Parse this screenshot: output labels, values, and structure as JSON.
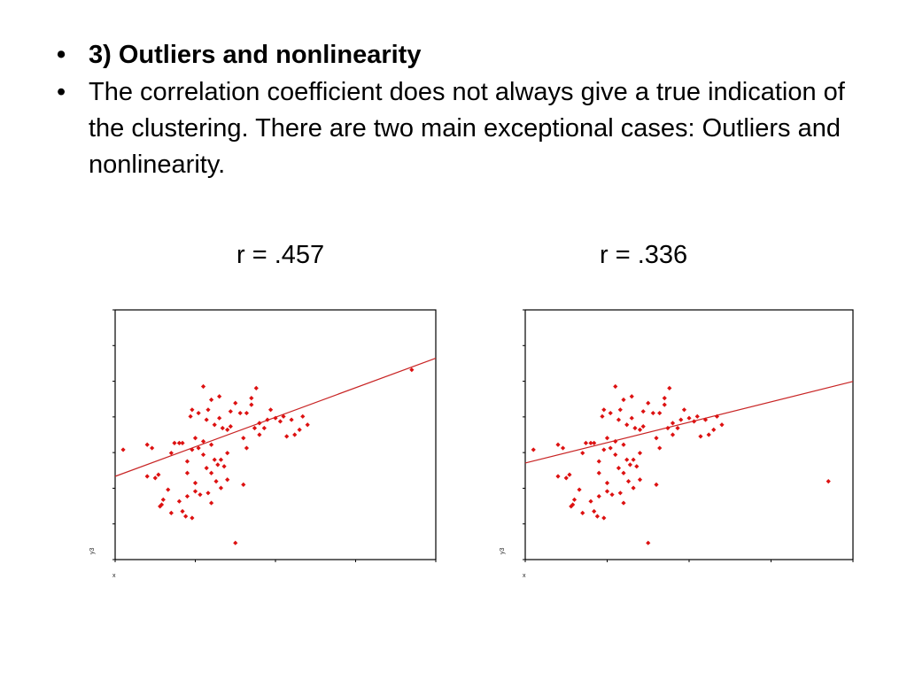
{
  "slide": {
    "bullets": [
      {
        "text": "3) Outliers and nonlinearity",
        "bold": true
      },
      {
        "text": "The correlation coefficient does not always give a true indication of the clustering.  There are two main exceptional cases: Outliers and nonlinearity.",
        "bold": false
      }
    ],
    "bullet_glyph": "•"
  },
  "colors": {
    "points": "#dd1111",
    "fit_line": "#c82424",
    "frame": "#000000"
  },
  "chart_data": [
    {
      "type": "scatter",
      "title": "r = .457",
      "xlabel": "x",
      "ylabel": "y3",
      "xlim": [
        0,
        200
      ],
      "ylim": [
        0,
        150
      ],
      "fit_line": [
        [
          0,
          50
        ],
        [
          200,
          121
        ]
      ],
      "points": [
        [
          5,
          66
        ],
        [
          20,
          69
        ],
        [
          23,
          67
        ],
        [
          25,
          49
        ],
        [
          27,
          51
        ],
        [
          29,
          33
        ],
        [
          35,
          64
        ],
        [
          37,
          70
        ],
        [
          40,
          70
        ],
        [
          42,
          70
        ],
        [
          45,
          59
        ],
        [
          47,
          86
        ],
        [
          48,
          66
        ],
        [
          50,
          73
        ],
        [
          52,
          67
        ],
        [
          55,
          71
        ],
        [
          57,
          84
        ],
        [
          60,
          69
        ],
        [
          62,
          81
        ],
        [
          65,
          85
        ],
        [
          67,
          79
        ],
        [
          70,
          64
        ],
        [
          72,
          80
        ],
        [
          75,
          94
        ],
        [
          78,
          88
        ],
        [
          80,
          73
        ],
        [
          82,
          88
        ],
        [
          85,
          93
        ],
        [
          87,
          79
        ],
        [
          90,
          82
        ],
        [
          93,
          79
        ],
        [
          95,
          84
        ],
        [
          97,
          90
        ],
        [
          100,
          85
        ],
        [
          103,
          83
        ],
        [
          105,
          86
        ],
        [
          107,
          74
        ],
        [
          110,
          84
        ],
        [
          112,
          75
        ],
        [
          115,
          78
        ],
        [
          117,
          86
        ],
        [
          120,
          81
        ],
        [
          55,
          104
        ],
        [
          60,
          96
        ],
        [
          65,
          98
        ],
        [
          48,
          90
        ],
        [
          52,
          88
        ],
        [
          58,
          90
        ],
        [
          72,
          89
        ],
        [
          70,
          78
        ],
        [
          85,
          97
        ],
        [
          82,
          67
        ],
        [
          90,
          75
        ],
        [
          62,
          60
        ],
        [
          64,
          57
        ],
        [
          66,
          60
        ],
        [
          68,
          56
        ],
        [
          66,
          43
        ],
        [
          60,
          52
        ],
        [
          58,
          40
        ],
        [
          55,
          63
        ],
        [
          45,
          52
        ],
        [
          50,
          41
        ],
        [
          53,
          39
        ],
        [
          60,
          34
        ],
        [
          70,
          48
        ],
        [
          33,
          42
        ],
        [
          40,
          35
        ],
        [
          44,
          26
        ],
        [
          48,
          25
        ],
        [
          30,
          36
        ],
        [
          35,
          28
        ],
        [
          42,
          29
        ],
        [
          88,
          103
        ],
        [
          20,
          50
        ],
        [
          28,
          32
        ],
        [
          45,
          38
        ],
        [
          57,
          55
        ],
        [
          63,
          47
        ],
        [
          50,
          46
        ],
        [
          80,
          45
        ],
        [
          75,
          10
        ],
        [
          185,
          114
        ]
      ]
    },
    {
      "type": "scatter",
      "title": "r = .336",
      "xlabel": "x",
      "ylabel": "y3",
      "xlim": [
        0,
        200
      ],
      "ylim": [
        0,
        150
      ],
      "fit_line": [
        [
          0,
          58
        ],
        [
          200,
          107
        ]
      ],
      "points": [
        [
          5,
          66
        ],
        [
          20,
          69
        ],
        [
          23,
          67
        ],
        [
          25,
          49
        ],
        [
          27,
          51
        ],
        [
          29,
          33
        ],
        [
          35,
          64
        ],
        [
          37,
          70
        ],
        [
          40,
          70
        ],
        [
          42,
          70
        ],
        [
          45,
          59
        ],
        [
          47,
          86
        ],
        [
          48,
          66
        ],
        [
          50,
          73
        ],
        [
          52,
          67
        ],
        [
          55,
          71
        ],
        [
          57,
          84
        ],
        [
          60,
          69
        ],
        [
          62,
          81
        ],
        [
          65,
          85
        ],
        [
          67,
          79
        ],
        [
          70,
          64
        ],
        [
          72,
          80
        ],
        [
          75,
          94
        ],
        [
          78,
          88
        ],
        [
          80,
          73
        ],
        [
          82,
          88
        ],
        [
          85,
          93
        ],
        [
          87,
          79
        ],
        [
          90,
          82
        ],
        [
          93,
          79
        ],
        [
          95,
          84
        ],
        [
          97,
          90
        ],
        [
          100,
          85
        ],
        [
          103,
          83
        ],
        [
          105,
          86
        ],
        [
          107,
          74
        ],
        [
          110,
          84
        ],
        [
          112,
          75
        ],
        [
          115,
          78
        ],
        [
          117,
          86
        ],
        [
          120,
          81
        ],
        [
          55,
          104
        ],
        [
          60,
          96
        ],
        [
          65,
          98
        ],
        [
          48,
          90
        ],
        [
          52,
          88
        ],
        [
          58,
          90
        ],
        [
          72,
          89
        ],
        [
          70,
          78
        ],
        [
          85,
          97
        ],
        [
          82,
          67
        ],
        [
          90,
          75
        ],
        [
          62,
          60
        ],
        [
          64,
          57
        ],
        [
          66,
          60
        ],
        [
          68,
          56
        ],
        [
          66,
          43
        ],
        [
          60,
          52
        ],
        [
          58,
          40
        ],
        [
          55,
          63
        ],
        [
          45,
          52
        ],
        [
          50,
          41
        ],
        [
          53,
          39
        ],
        [
          60,
          34
        ],
        [
          70,
          48
        ],
        [
          33,
          42
        ],
        [
          40,
          35
        ],
        [
          44,
          26
        ],
        [
          48,
          25
        ],
        [
          30,
          36
        ],
        [
          35,
          28
        ],
        [
          42,
          29
        ],
        [
          88,
          103
        ],
        [
          20,
          50
        ],
        [
          28,
          32
        ],
        [
          45,
          38
        ],
        [
          57,
          55
        ],
        [
          63,
          47
        ],
        [
          50,
          46
        ],
        [
          80,
          45
        ],
        [
          75,
          10
        ],
        [
          185,
          47
        ]
      ]
    }
  ]
}
